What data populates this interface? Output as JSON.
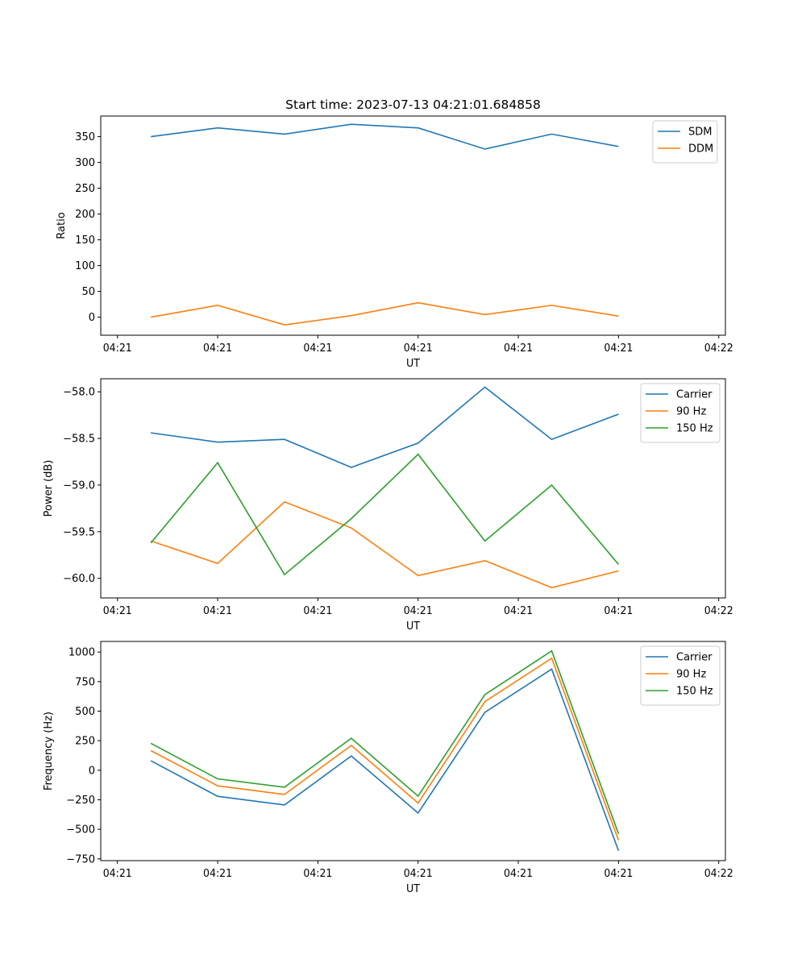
{
  "chart_data": [
    {
      "type": "line",
      "title": "Start time: 2023-07-13 04:21:01.684858",
      "xlabel": "UT",
      "ylabel": "Ratio",
      "ylim": [
        -35,
        390
      ],
      "yticks": [
        0,
        50,
        100,
        150,
        200,
        250,
        300,
        350
      ],
      "ytick_labels": [
        "0",
        "50",
        "100",
        "150",
        "200",
        "250",
        "300",
        "350"
      ],
      "xlim": [
        -0.75,
        8.6
      ],
      "xticks": [
        -0.5,
        1.0,
        2.5,
        4.0,
        5.5,
        7.0,
        8.5
      ],
      "xtick_labels": [
        "04:21",
        "04:21",
        "04:21",
        "04:21",
        "04:21",
        "04:21",
        "04:22"
      ],
      "x": [
        0,
        1,
        2,
        3,
        4,
        5,
        6,
        7
      ],
      "series": [
        {
          "name": "SDM",
          "color": "#1f77b4",
          "values": [
            350,
            367,
            355,
            374,
            367,
            326,
            355,
            331
          ]
        },
        {
          "name": "DDM",
          "color": "#ff7f0e",
          "values": [
            0,
            23,
            -15,
            3,
            28,
            5,
            23,
            2
          ]
        }
      ],
      "legend": "top-right",
      "grid": false
    },
    {
      "type": "line",
      "title": "",
      "xlabel": "UT",
      "ylabel": "Power (dB)",
      "ylim": [
        -60.21,
        -57.86
      ],
      "yticks": [
        -60.0,
        -59.5,
        -59.0,
        -58.5,
        -58.0
      ],
      "ytick_labels": [
        "−60.0",
        "−59.5",
        "−59.0",
        "−58.5",
        "−58.0"
      ],
      "xlim": [
        -0.75,
        8.6
      ],
      "xticks": [
        -0.5,
        1.0,
        2.5,
        4.0,
        5.5,
        7.0,
        8.5
      ],
      "xtick_labels": [
        "04:21",
        "04:21",
        "04:21",
        "04:21",
        "04:21",
        "04:21",
        "04:22"
      ],
      "x": [
        0,
        1,
        2,
        3,
        4,
        5,
        6,
        7
      ],
      "series": [
        {
          "name": "Carrier",
          "color": "#1f77b4",
          "values": [
            -58.44,
            -58.54,
            -58.51,
            -58.81,
            -58.55,
            -57.95,
            -58.51,
            -58.24
          ]
        },
        {
          "name": "90 Hz",
          "color": "#ff7f0e",
          "values": [
            -59.6,
            -59.84,
            -59.18,
            -59.46,
            -59.97,
            -59.81,
            -60.1,
            -59.92
          ]
        },
        {
          "name": "150 Hz",
          "color": "#2ca02c",
          "values": [
            -59.62,
            -58.76,
            -59.96,
            -59.36,
            -58.67,
            -59.6,
            -59.0,
            -59.85
          ]
        }
      ],
      "legend": "top-right",
      "grid": false
    },
    {
      "type": "line",
      "title": "",
      "xlabel": "UT",
      "ylabel": "Frequency (Hz)",
      "ylim": [
        -765,
        1090
      ],
      "yticks": [
        -750,
        -500,
        -250,
        0,
        250,
        500,
        750,
        1000
      ],
      "ytick_labels": [
        "−750",
        "−500",
        "−250",
        "0",
        "250",
        "500",
        "750",
        "1000"
      ],
      "xlim": [
        -0.75,
        8.6
      ],
      "xticks": [
        -0.5,
        1.0,
        2.5,
        4.0,
        5.5,
        7.0,
        8.5
      ],
      "xtick_labels": [
        "04:21",
        "04:21",
        "04:21",
        "04:21",
        "04:21",
        "04:21",
        "04:22"
      ],
      "x": [
        0,
        1,
        2,
        3,
        4,
        5,
        6,
        7
      ],
      "series": [
        {
          "name": "Carrier",
          "color": "#1f77b4",
          "values": [
            80,
            -221,
            -294,
            121,
            -362,
            490,
            856,
            -681
          ]
        },
        {
          "name": "90 Hz",
          "color": "#ff7f0e",
          "values": [
            166,
            -132,
            -205,
            210,
            -278,
            581,
            948,
            -593
          ]
        },
        {
          "name": "150 Hz",
          "color": "#2ca02c",
          "values": [
            228,
            -73,
            -144,
            271,
            -219,
            640,
            1010,
            -538
          ]
        }
      ],
      "legend": "top-right",
      "grid": false
    }
  ]
}
